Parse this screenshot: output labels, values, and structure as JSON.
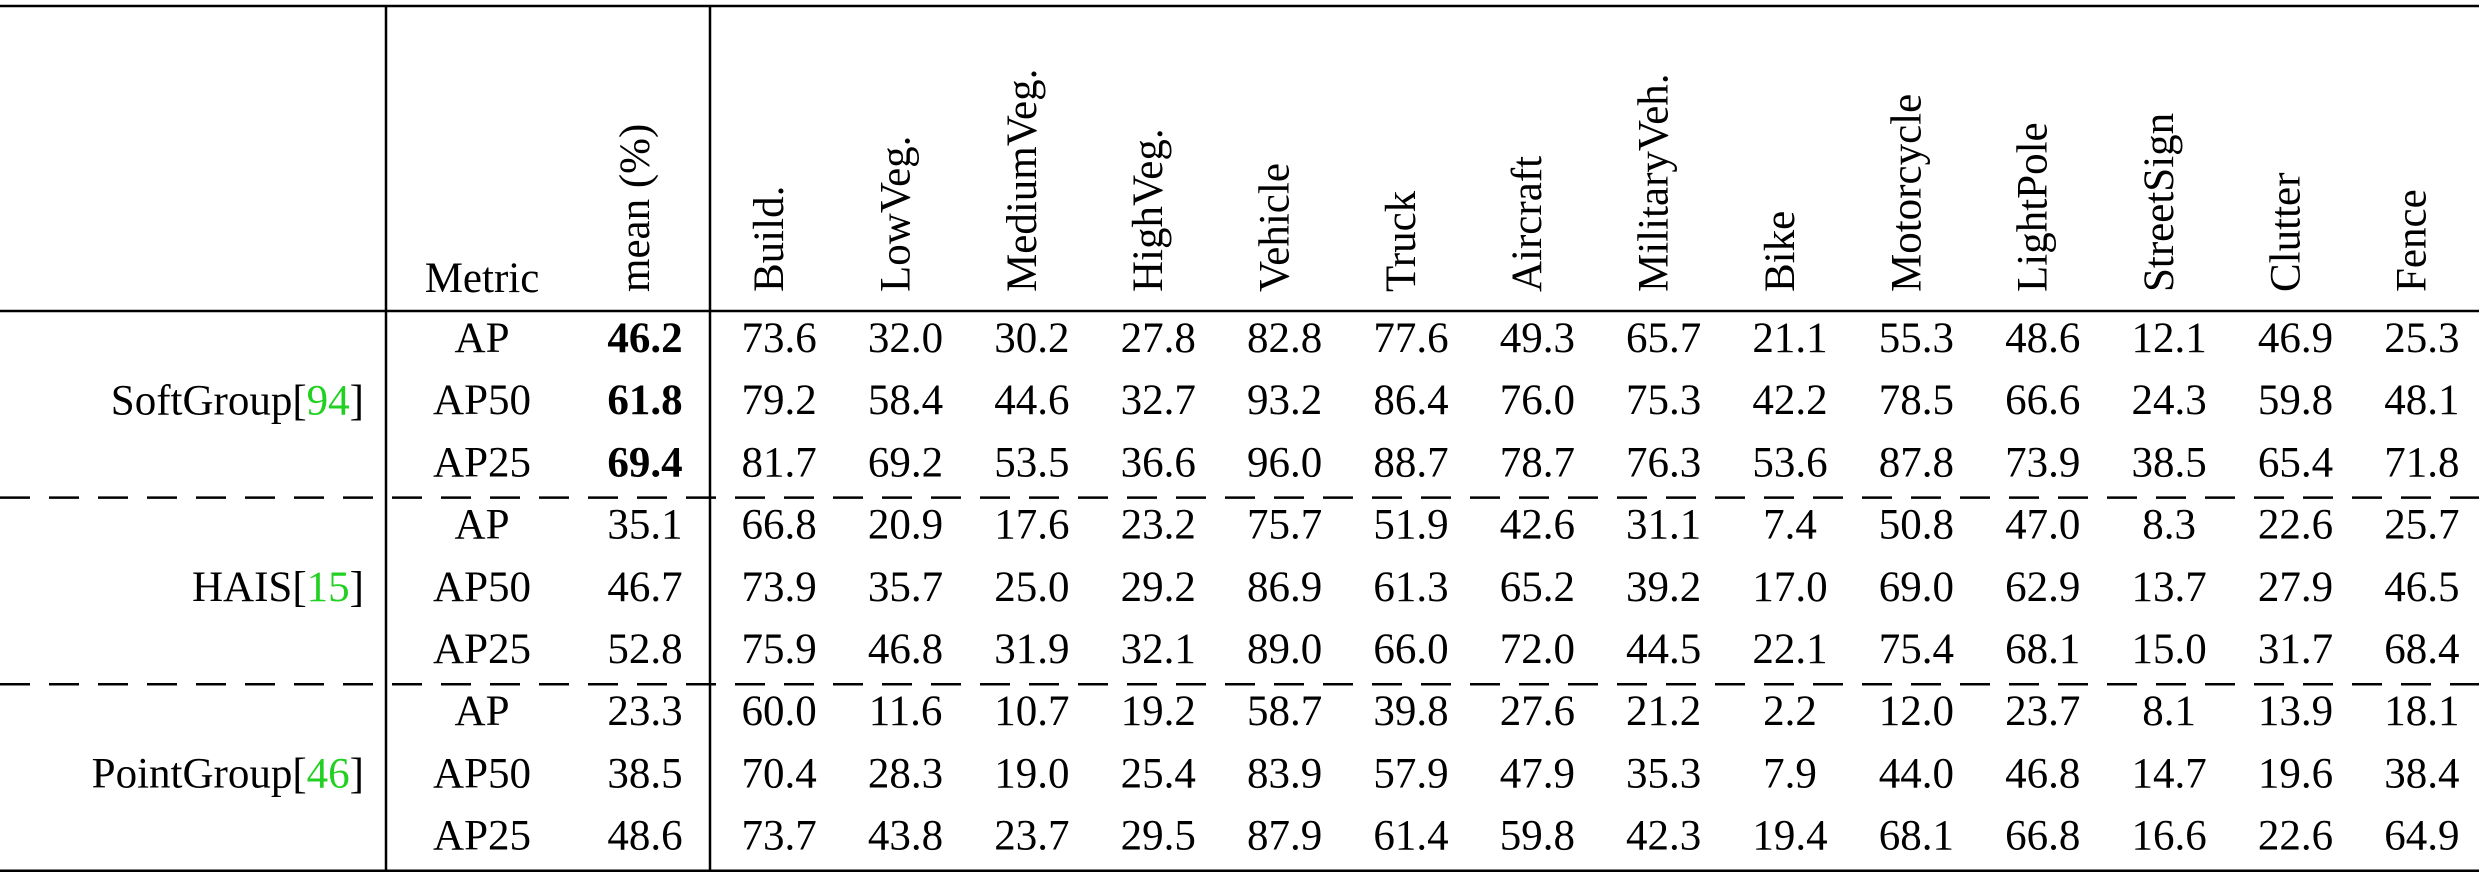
{
  "header": {
    "metric": "Metric",
    "mean": "mean (%)",
    "classes": [
      "Build.",
      "LowVeg.",
      "MediumVeg.",
      "HighVeg.",
      "Vehicle",
      "Truck",
      "Aircraft",
      "MilitaryVeh.",
      "Bike",
      "Motorcycle",
      "LightPole",
      "StreetSign",
      "Clutter",
      "Fence"
    ]
  },
  "cite_color": "#22d022",
  "groups": [
    {
      "method": "SoftGroup",
      "cite": [
        "[",
        "94",
        "]"
      ],
      "bold_mean": true,
      "rows": [
        {
          "metric": "AP",
          "mean": "46.2",
          "values": [
            "73.6",
            "32.0",
            "30.2",
            "27.8",
            "82.8",
            "77.6",
            "49.3",
            "65.7",
            "21.1",
            "55.3",
            "48.6",
            "12.1",
            "46.9",
            "25.3"
          ]
        },
        {
          "metric": "AP50",
          "mean": "61.8",
          "values": [
            "79.2",
            "58.4",
            "44.6",
            "32.7",
            "93.2",
            "86.4",
            "76.0",
            "75.3",
            "42.2",
            "78.5",
            "66.6",
            "24.3",
            "59.8",
            "48.1"
          ]
        },
        {
          "metric": "AP25",
          "mean": "69.4",
          "values": [
            "81.7",
            "69.2",
            "53.5",
            "36.6",
            "96.0",
            "88.7",
            "78.7",
            "76.3",
            "53.6",
            "87.8",
            "73.9",
            "38.5",
            "65.4",
            "71.8"
          ]
        }
      ]
    },
    {
      "method": "HAIS",
      "cite": [
        "[",
        "15",
        "]"
      ],
      "bold_mean": false,
      "rows": [
        {
          "metric": "AP",
          "mean": "35.1",
          "values": [
            "66.8",
            "20.9",
            "17.6",
            "23.2",
            "75.7",
            "51.9",
            "42.6",
            "31.1",
            "7.4",
            "50.8",
            "47.0",
            "8.3",
            "22.6",
            "25.7"
          ]
        },
        {
          "metric": "AP50",
          "mean": "46.7",
          "values": [
            "73.9",
            "35.7",
            "25.0",
            "29.2",
            "86.9",
            "61.3",
            "65.2",
            "39.2",
            "17.0",
            "69.0",
            "62.9",
            "13.7",
            "27.9",
            "46.5"
          ]
        },
        {
          "metric": "AP25",
          "mean": "52.8",
          "values": [
            "75.9",
            "46.8",
            "31.9",
            "32.1",
            "89.0",
            "66.0",
            "72.0",
            "44.5",
            "22.1",
            "75.4",
            "68.1",
            "15.0",
            "31.7",
            "68.4"
          ]
        }
      ]
    },
    {
      "method": "PointGroup",
      "cite": [
        "[",
        "46",
        "]"
      ],
      "bold_mean": false,
      "rows": [
        {
          "metric": "AP",
          "mean": "23.3",
          "values": [
            "60.0",
            "11.6",
            "10.7",
            "19.2",
            "58.7",
            "39.8",
            "27.6",
            "21.2",
            "2.2",
            "12.0",
            "23.7",
            "8.1",
            "13.9",
            "18.1"
          ]
        },
        {
          "metric": "AP50",
          "mean": "38.5",
          "values": [
            "70.4",
            "28.3",
            "19.0",
            "25.4",
            "83.9",
            "57.9",
            "47.9",
            "35.3",
            "7.9",
            "44.0",
            "46.8",
            "14.7",
            "19.6",
            "38.4"
          ]
        },
        {
          "metric": "AP25",
          "mean": "48.6",
          "values": [
            "73.7",
            "43.8",
            "23.7",
            "29.5",
            "87.9",
            "61.4",
            "59.8",
            "42.3",
            "19.4",
            "68.1",
            "66.8",
            "16.6",
            "22.6",
            "64.9"
          ]
        }
      ]
    }
  ]
}
